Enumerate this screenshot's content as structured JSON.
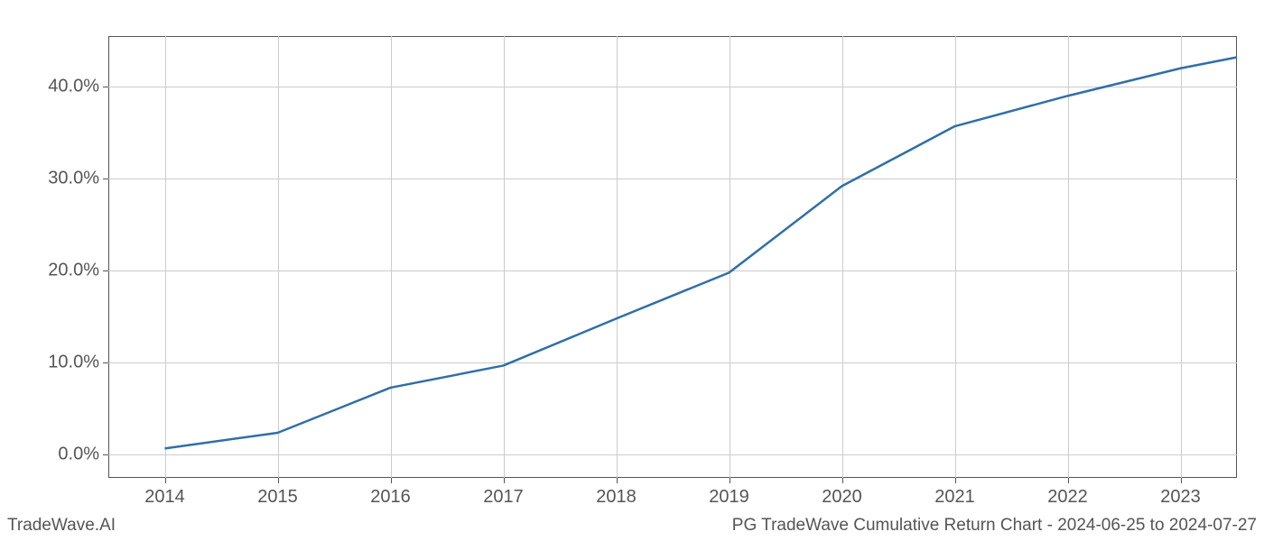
{
  "chart": {
    "type": "line",
    "x_values": [
      2014,
      2015,
      2016,
      2017,
      2018,
      2019,
      2020,
      2021,
      2022,
      2023,
      2023.5
    ],
    "y_values": [
      0.7,
      2.4,
      7.3,
      9.7,
      14.8,
      19.8,
      29.2,
      35.7,
      39.0,
      42.0,
      43.2
    ],
    "line_color": "#2f6fa9",
    "line_width": 2.5,
    "xlim": [
      2013.5,
      2023.5
    ],
    "ylim": [
      -2.5,
      45.5
    ],
    "x_ticks": [
      2014,
      2015,
      2016,
      2017,
      2018,
      2019,
      2020,
      2021,
      2022,
      2023
    ],
    "x_tick_labels": [
      "2014",
      "2015",
      "2016",
      "2017",
      "2018",
      "2019",
      "2020",
      "2021",
      "2022",
      "2023"
    ],
    "y_ticks": [
      0,
      10,
      20,
      30,
      40
    ],
    "y_tick_labels": [
      "0.0%",
      "10.0%",
      "20.0%",
      "30.0%",
      "40.0%"
    ],
    "tick_fontsize": 20,
    "grid_color": "#cccccc",
    "background_color": "#ffffff",
    "spine_color": "#555555"
  },
  "footer": {
    "left": "TradeWave.AI",
    "right": "PG TradeWave Cumulative Return Chart - 2024-06-25 to 2024-07-27"
  }
}
